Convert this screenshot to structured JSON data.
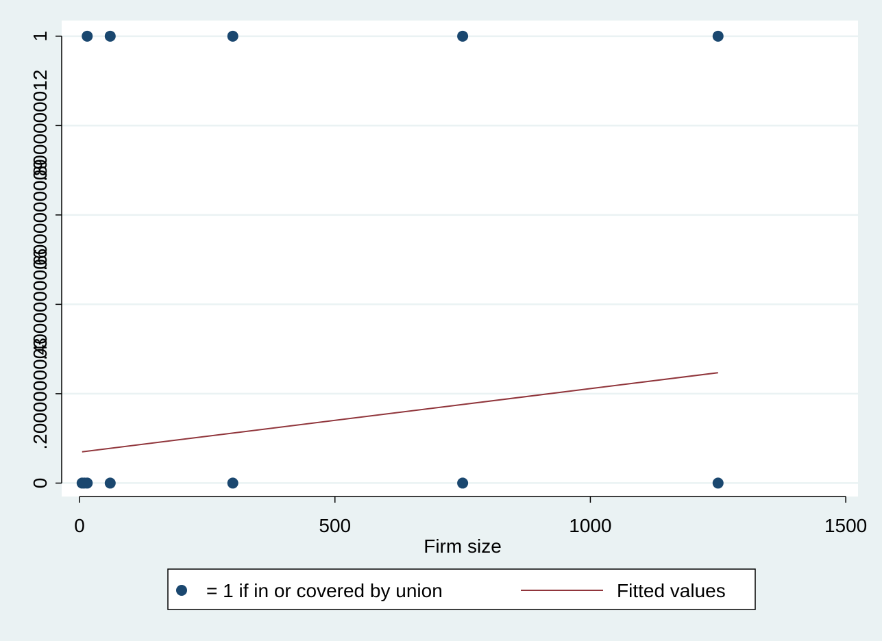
{
  "chart_data": {
    "type": "scatter",
    "xlabel": "Firm size",
    "xlim": [
      -35,
      1524
    ],
    "xticks": [
      0,
      500,
      1000,
      1500
    ],
    "ylim": [
      -0.03,
      1.035
    ],
    "yticks": [
      0,
      {
        "value": 0.2,
        "label": ".2000000003"
      },
      {
        "value": 0.4,
        "label": ".4000000006"
      },
      {
        "value": 0.6,
        "label": ".6000000009"
      },
      {
        "value": 0.8,
        "label": ".8000000012"
      },
      1
    ],
    "grid": true,
    "legend": "bottom",
    "series": [
      {
        "name": "= 1 if in or covered by union",
        "color": "#1a476f",
        "type": "scatter",
        "x": [
          15,
          60,
          300,
          750,
          1250,
          5,
          10,
          15,
          60,
          300,
          750,
          1250
        ],
        "values": [
          1,
          1,
          1,
          1,
          1,
          0,
          0,
          0,
          0,
          0,
          0,
          0
        ]
      },
      {
        "name": "Fitted values",
        "color": "#90353b",
        "type": "line",
        "x": [
          5,
          1250
        ],
        "values": [
          0.07,
          0.247
        ]
      }
    ]
  }
}
